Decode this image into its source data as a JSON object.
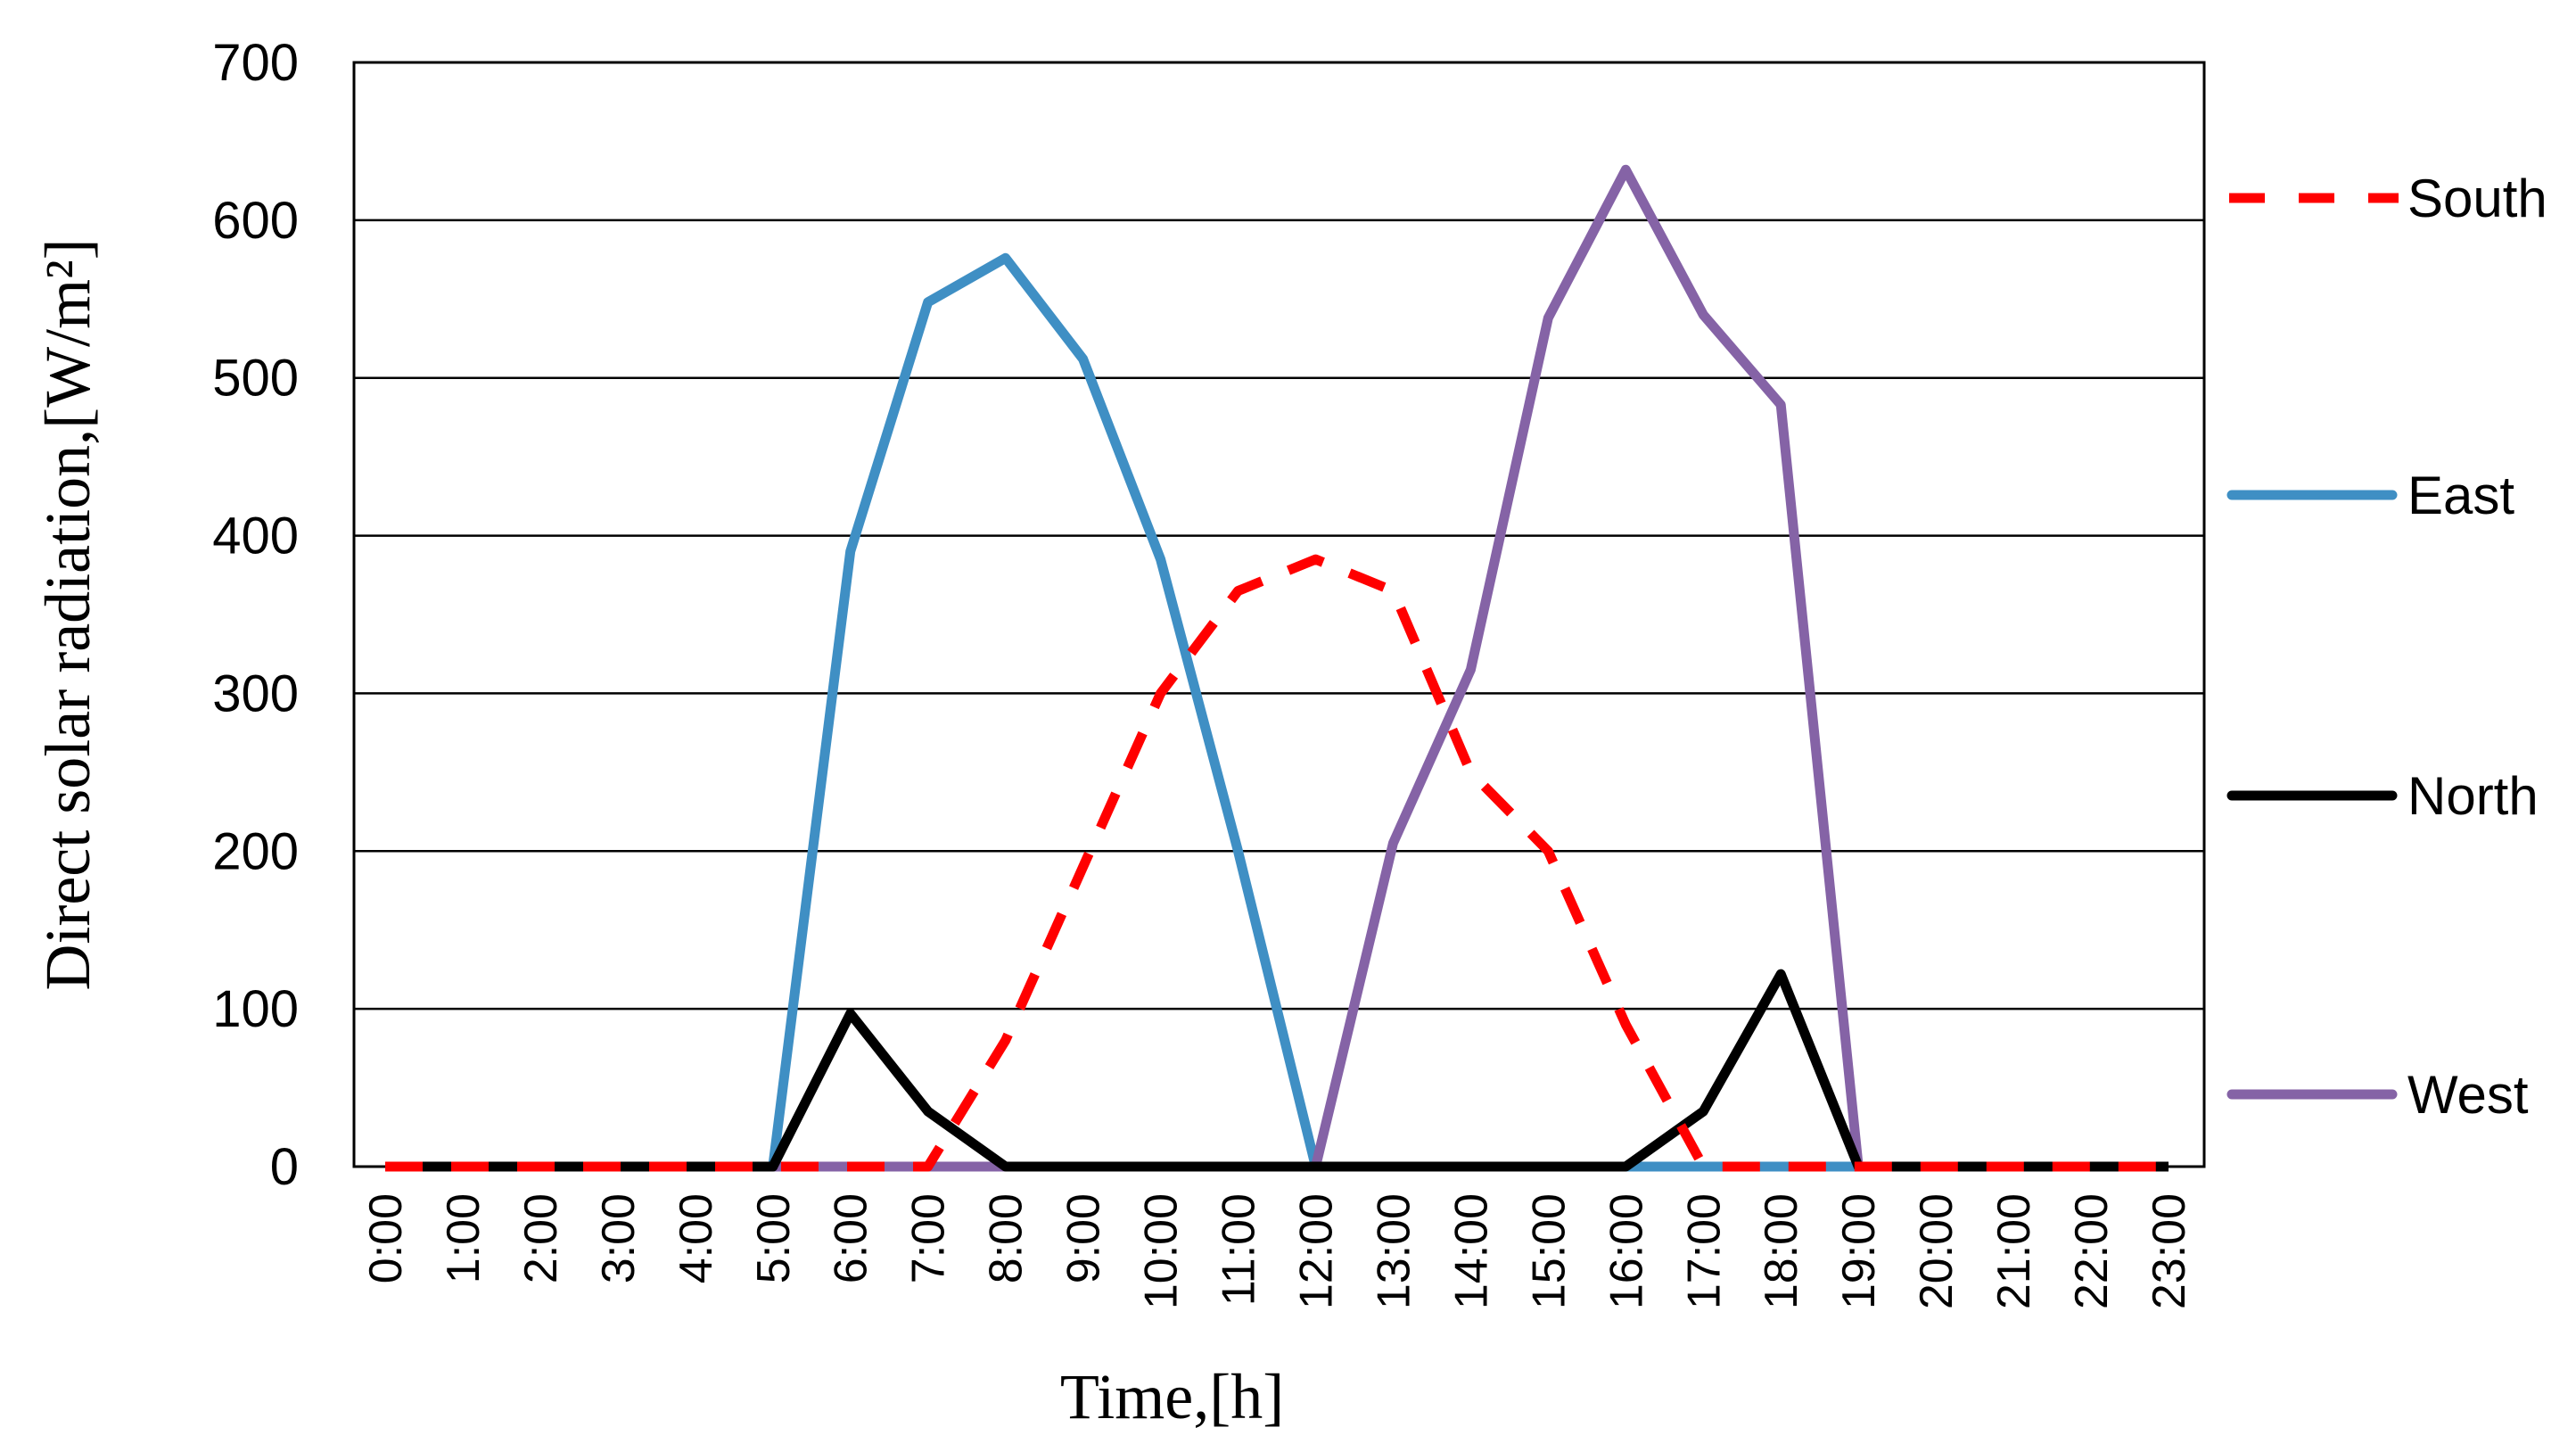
{
  "chart_data": {
    "type": "line",
    "title": "",
    "xlabel": "Time,[h]",
    "ylabel": "Direct solar radiation,[W/m²]",
    "ylim": [
      0,
      700
    ],
    "yticks": [
      "0",
      "100",
      "200",
      "300",
      "400",
      "500",
      "600",
      "700"
    ],
    "grid": "horizontal",
    "legend_position": "right",
    "categories": [
      "0:00",
      "1:00",
      "2:00",
      "3:00",
      "4:00",
      "5:00",
      "6:00",
      "7:00",
      "8:00",
      "9:00",
      "10:00",
      "11:00",
      "12:00",
      "13:00",
      "14:00",
      "15:00",
      "16:00",
      "17:00",
      "18:00",
      "19:00",
      "20:00",
      "21:00",
      "22:00",
      "23:00"
    ],
    "series": [
      {
        "name": "South",
        "color": "#ff0000",
        "dash": true,
        "values": [
          0,
          0,
          0,
          0,
          0,
          0,
          0,
          0,
          80,
          190,
          300,
          365,
          385,
          365,
          250,
          200,
          90,
          0,
          0,
          0,
          0,
          0,
          0,
          0
        ]
      },
      {
        "name": "East",
        "color": "#3f8fc4",
        "dash": false,
        "values": [
          0,
          0,
          0,
          0,
          0,
          0,
          390,
          548,
          576,
          512,
          385,
          200,
          0,
          0,
          0,
          0,
          0,
          0,
          0,
          0,
          0,
          0,
          0,
          0
        ]
      },
      {
        "name": "North",
        "color": "#000000",
        "dash": false,
        "values": [
          0,
          0,
          0,
          0,
          0,
          0,
          97,
          35,
          0,
          0,
          0,
          0,
          0,
          0,
          0,
          0,
          0,
          35,
          122,
          0,
          0,
          0,
          0,
          0
        ]
      },
      {
        "name": "West",
        "color": "#8563a6",
        "dash": false,
        "values": [
          0,
          0,
          0,
          0,
          0,
          0,
          0,
          0,
          0,
          0,
          0,
          0,
          0,
          205,
          315,
          538,
          632,
          540,
          483,
          0,
          0,
          0,
          0,
          0
        ]
      }
    ]
  }
}
